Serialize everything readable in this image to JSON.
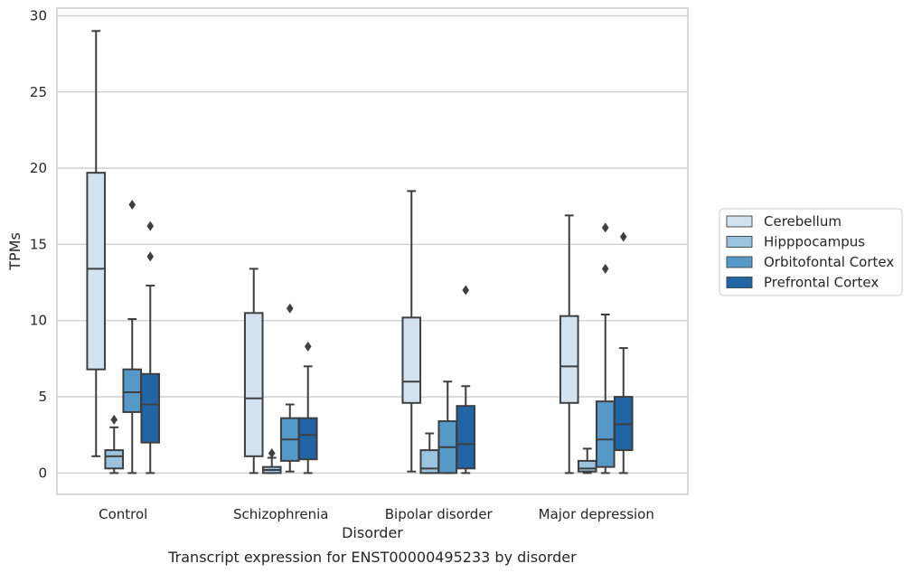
{
  "chart_data": {
    "type": "boxplot",
    "xlabel": "Disorder",
    "ylabel": "TPMs",
    "caption": "Transcript expression for ENST00000495233 by disorder",
    "ylim": [
      -1.4,
      30.5
    ],
    "yticks": [
      0,
      5,
      10,
      15,
      20,
      25,
      30
    ],
    "grid": "horizontal",
    "legend_position": "right",
    "categories": [
      "Control",
      "Schizophrenia",
      "Bipolar disorder",
      "Major depression"
    ],
    "series": [
      {
        "name": "Cerebellum",
        "color": "#d3e2f0",
        "boxes": [
          {
            "whislo": 1.1,
            "q1": 6.8,
            "med": 13.4,
            "q3": 19.7,
            "whishi": 29.0,
            "fliers": []
          },
          {
            "whislo": 0.0,
            "q1": 1.1,
            "med": 4.9,
            "q3": 10.5,
            "whishi": 13.4,
            "fliers": []
          },
          {
            "whislo": 0.1,
            "q1": 4.6,
            "med": 6.0,
            "q3": 10.2,
            "whishi": 18.5,
            "fliers": []
          },
          {
            "whislo": 0.0,
            "q1": 4.6,
            "med": 7.0,
            "q3": 10.3,
            "whishi": 16.9,
            "fliers": []
          }
        ]
      },
      {
        "name": "Hipppocampus",
        "color": "#99c3de",
        "boxes": [
          {
            "whislo": 0.0,
            "q1": 0.3,
            "med": 1.1,
            "q3": 1.5,
            "whishi": 3.0,
            "fliers": [
              3.5
            ]
          },
          {
            "whislo": 0.0,
            "q1": 0.0,
            "med": 0.2,
            "q3": 0.4,
            "whishi": 1.0,
            "fliers": [
              1.3
            ]
          },
          {
            "whislo": 0.0,
            "q1": 0.0,
            "med": 0.3,
            "q3": 1.5,
            "whishi": 2.6,
            "fliers": []
          },
          {
            "whislo": 0.0,
            "q1": 0.1,
            "med": 0.3,
            "q3": 0.8,
            "whishi": 1.6,
            "fliers": []
          }
        ]
      },
      {
        "name": "Orbitofontal Cortex",
        "color": "#5599c8",
        "boxes": [
          {
            "whislo": 0.0,
            "q1": 4.0,
            "med": 5.3,
            "q3": 6.8,
            "whishi": 10.1,
            "fliers": [
              17.6
            ]
          },
          {
            "whislo": 0.1,
            "q1": 0.8,
            "med": 2.2,
            "q3": 3.6,
            "whishi": 4.5,
            "fliers": [
              10.8
            ]
          },
          {
            "whislo": 0.0,
            "q1": 0.0,
            "med": 1.7,
            "q3": 3.4,
            "whishi": 6.0,
            "fliers": []
          },
          {
            "whislo": 0.0,
            "q1": 0.4,
            "med": 2.2,
            "q3": 4.7,
            "whishi": 10.4,
            "fliers": [
              13.4,
              16.1
            ]
          }
        ]
      },
      {
        "name": "Prefrontal Cortex",
        "color": "#2265a7",
        "boxes": [
          {
            "whislo": 0.0,
            "q1": 2.0,
            "med": 4.5,
            "q3": 6.5,
            "whishi": 12.3,
            "fliers": [
              14.2,
              16.2
            ]
          },
          {
            "whislo": 0.0,
            "q1": 0.9,
            "med": 2.5,
            "q3": 3.6,
            "whishi": 7.0,
            "fliers": [
              8.3
            ]
          },
          {
            "whislo": 0.0,
            "q1": 0.3,
            "med": 1.9,
            "q3": 4.4,
            "whishi": 5.7,
            "fliers": [
              12.0
            ]
          },
          {
            "whislo": 0.0,
            "q1": 1.5,
            "med": 3.2,
            "q3": 5.0,
            "whishi": 8.2,
            "fliers": [
              15.5
            ]
          }
        ]
      }
    ]
  },
  "colors": {
    "edge": "#3f3f3f",
    "grid": "#cccccc",
    "frame": "#cccccc",
    "text": "#262626"
  }
}
